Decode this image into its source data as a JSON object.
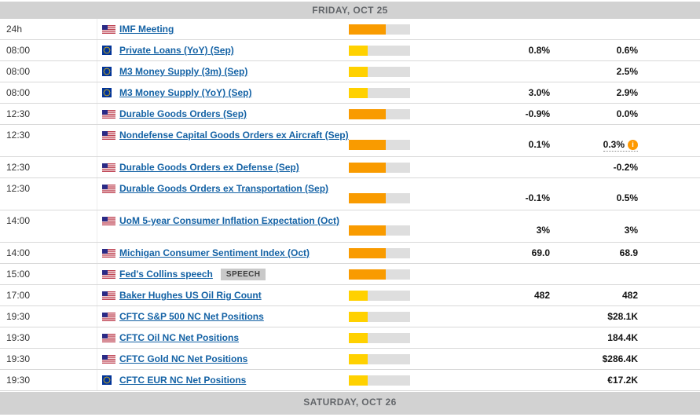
{
  "day_header": "FRIDAY, OCT 25",
  "day_footer": "SATURDAY, OCT 26",
  "colors": {
    "impact_medium_orange": "#f99b00",
    "impact_low_yellow": "#ffd100",
    "bar_track_gray": "#dedede",
    "event_link_blue": "#1462a5",
    "day_band_bg": "#d2d2d2",
    "day_band_text": "#63666a",
    "info_icon_orange": "#ff9900"
  },
  "impact": {
    "medium": {
      "color": "#f99b00",
      "fraction": 0.6
    },
    "low": {
      "color": "#ffd100",
      "fraction": 0.31
    }
  },
  "info_icon_glyph": "i",
  "rows": [
    {
      "time": "24h",
      "country": "US",
      "event": "IMF Meeting",
      "impact": "medium",
      "consensus": "",
      "previous": "",
      "badge": "",
      "tall": false,
      "previous_info": false
    },
    {
      "time": "08:00",
      "country": "EU",
      "event": "Private Loans (YoY) (Sep)",
      "impact": "low",
      "consensus": "0.8%",
      "previous": "0.6%",
      "badge": "",
      "tall": false,
      "previous_info": false
    },
    {
      "time": "08:00",
      "country": "EU",
      "event": "M3 Money Supply (3m) (Sep)",
      "impact": "low",
      "consensus": "",
      "previous": "2.5%",
      "badge": "",
      "tall": false,
      "previous_info": false
    },
    {
      "time": "08:00",
      "country": "EU",
      "event": "M3 Money Supply (YoY) (Sep)",
      "impact": "low",
      "consensus": "3.0%",
      "previous": "2.9%",
      "badge": "",
      "tall": false,
      "previous_info": false
    },
    {
      "time": "12:30",
      "country": "US",
      "event": "Durable Goods Orders (Sep)",
      "impact": "medium",
      "consensus": "-0.9%",
      "previous": "0.0%",
      "badge": "",
      "tall": false,
      "previous_info": false
    },
    {
      "time": "12:30",
      "country": "US",
      "event": "Nondefense Capital Goods Orders ex Aircraft (Sep)",
      "impact": "medium",
      "consensus": "0.1%",
      "previous": "0.3%",
      "badge": "",
      "tall": true,
      "previous_info": true
    },
    {
      "time": "12:30",
      "country": "US",
      "event": "Durable Goods Orders ex Defense (Sep)",
      "impact": "medium",
      "consensus": "",
      "previous": "-0.2%",
      "badge": "",
      "tall": false,
      "previous_info": false
    },
    {
      "time": "12:30",
      "country": "US",
      "event": "Durable Goods Orders ex Transportation (Sep)",
      "impact": "medium",
      "consensus": "-0.1%",
      "previous": "0.5%",
      "badge": "",
      "tall": true,
      "previous_info": false
    },
    {
      "time": "14:00",
      "country": "US",
      "event": "UoM 5-year Consumer Inflation Expectation (Oct)",
      "impact": "medium",
      "consensus": "3%",
      "previous": "3%",
      "badge": "",
      "tall": true,
      "previous_info": false
    },
    {
      "time": "14:00",
      "country": "US",
      "event": "Michigan Consumer Sentiment Index (Oct)",
      "impact": "medium",
      "consensus": "69.0",
      "previous": "68.9",
      "badge": "",
      "tall": false,
      "previous_info": false
    },
    {
      "time": "15:00",
      "country": "US",
      "event": "Fed's Collins speech",
      "impact": "medium",
      "consensus": "",
      "previous": "",
      "badge": "SPEECH",
      "tall": false,
      "previous_info": false
    },
    {
      "time": "17:00",
      "country": "US",
      "event": "Baker Hughes US Oil Rig Count",
      "impact": "low",
      "consensus": "482",
      "previous": "482",
      "badge": "",
      "tall": false,
      "previous_info": false
    },
    {
      "time": "19:30",
      "country": "US",
      "event": "CFTC S&P 500 NC Net Positions",
      "impact": "low",
      "consensus": "",
      "previous": "$28.1K",
      "badge": "",
      "tall": false,
      "previous_info": false
    },
    {
      "time": "19:30",
      "country": "US",
      "event": "CFTC Oil NC Net Positions",
      "impact": "low",
      "consensus": "",
      "previous": "184.4K",
      "badge": "",
      "tall": false,
      "previous_info": false
    },
    {
      "time": "19:30",
      "country": "US",
      "event": "CFTC Gold NC Net Positions",
      "impact": "low",
      "consensus": "",
      "previous": "$286.4K",
      "badge": "",
      "tall": false,
      "previous_info": false
    },
    {
      "time": "19:30",
      "country": "EU",
      "event": "CFTC EUR NC Net Positions",
      "impact": "low",
      "consensus": "",
      "previous": "€17.2K",
      "badge": "",
      "tall": false,
      "previous_info": false
    }
  ]
}
